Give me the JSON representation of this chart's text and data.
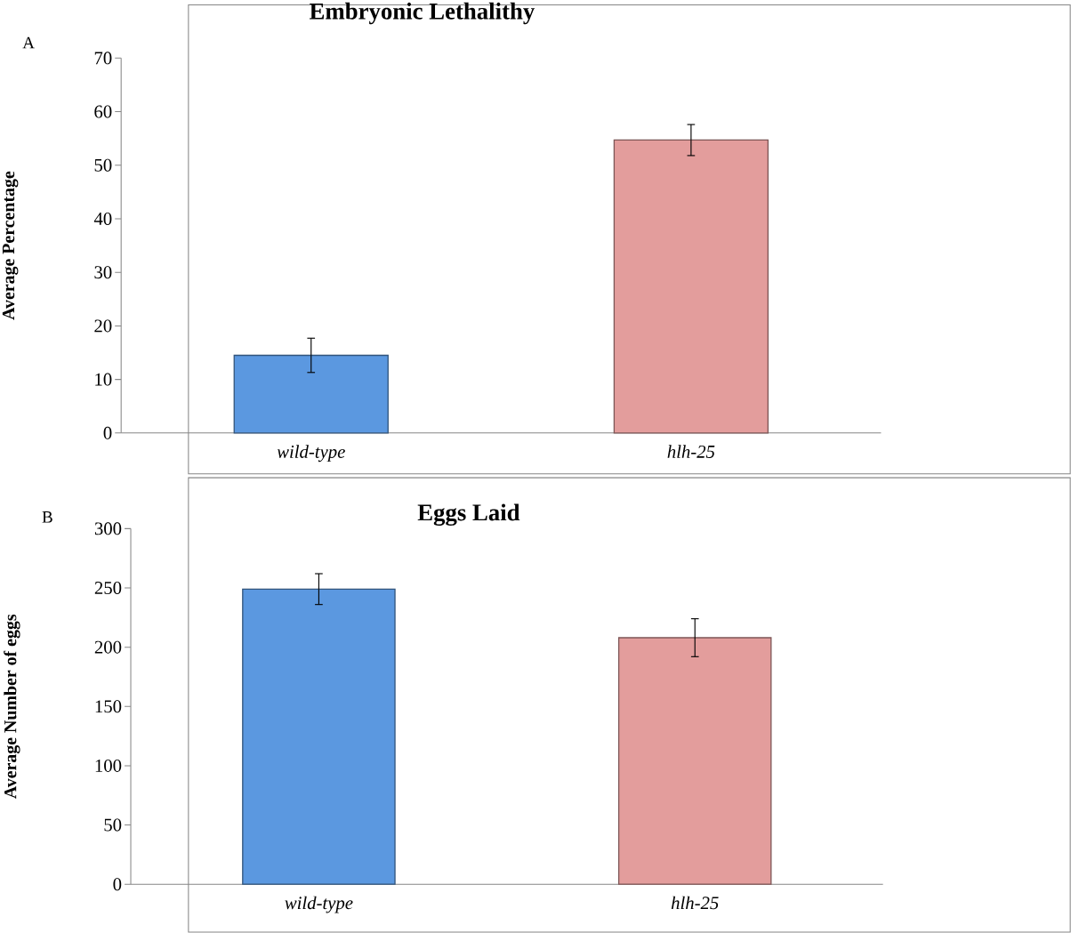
{
  "chart_data": [
    {
      "type": "bar",
      "title": "Embryonic Lethalithy",
      "ylabel": "Average Percentage",
      "annotations": [
        "A"
      ],
      "categories": [
        "wild-type",
        "hlh-25"
      ],
      "values": [
        14.5,
        54.7
      ],
      "errors": [
        3.2,
        2.9
      ],
      "colors": [
        "#5b98e0",
        "#e39d9c"
      ],
      "ylim": [
        0,
        70
      ],
      "yticks": [
        0,
        10,
        20,
        30,
        40,
        50,
        60,
        70
      ],
      "grid": false
    },
    {
      "type": "bar",
      "title": "Eggs Laid",
      "ylabel": "Average Number of eggs",
      "annotations": [
        "B"
      ],
      "categories": [
        "wild-type",
        "hlh-25"
      ],
      "values": [
        249,
        208
      ],
      "errors": [
        13,
        16
      ],
      "colors": [
        "#5b98e0",
        "#e39d9c"
      ],
      "ylim": [
        0,
        300
      ],
      "yticks": [
        0,
        50,
        100,
        150,
        200,
        250,
        300
      ],
      "grid": false
    }
  ]
}
